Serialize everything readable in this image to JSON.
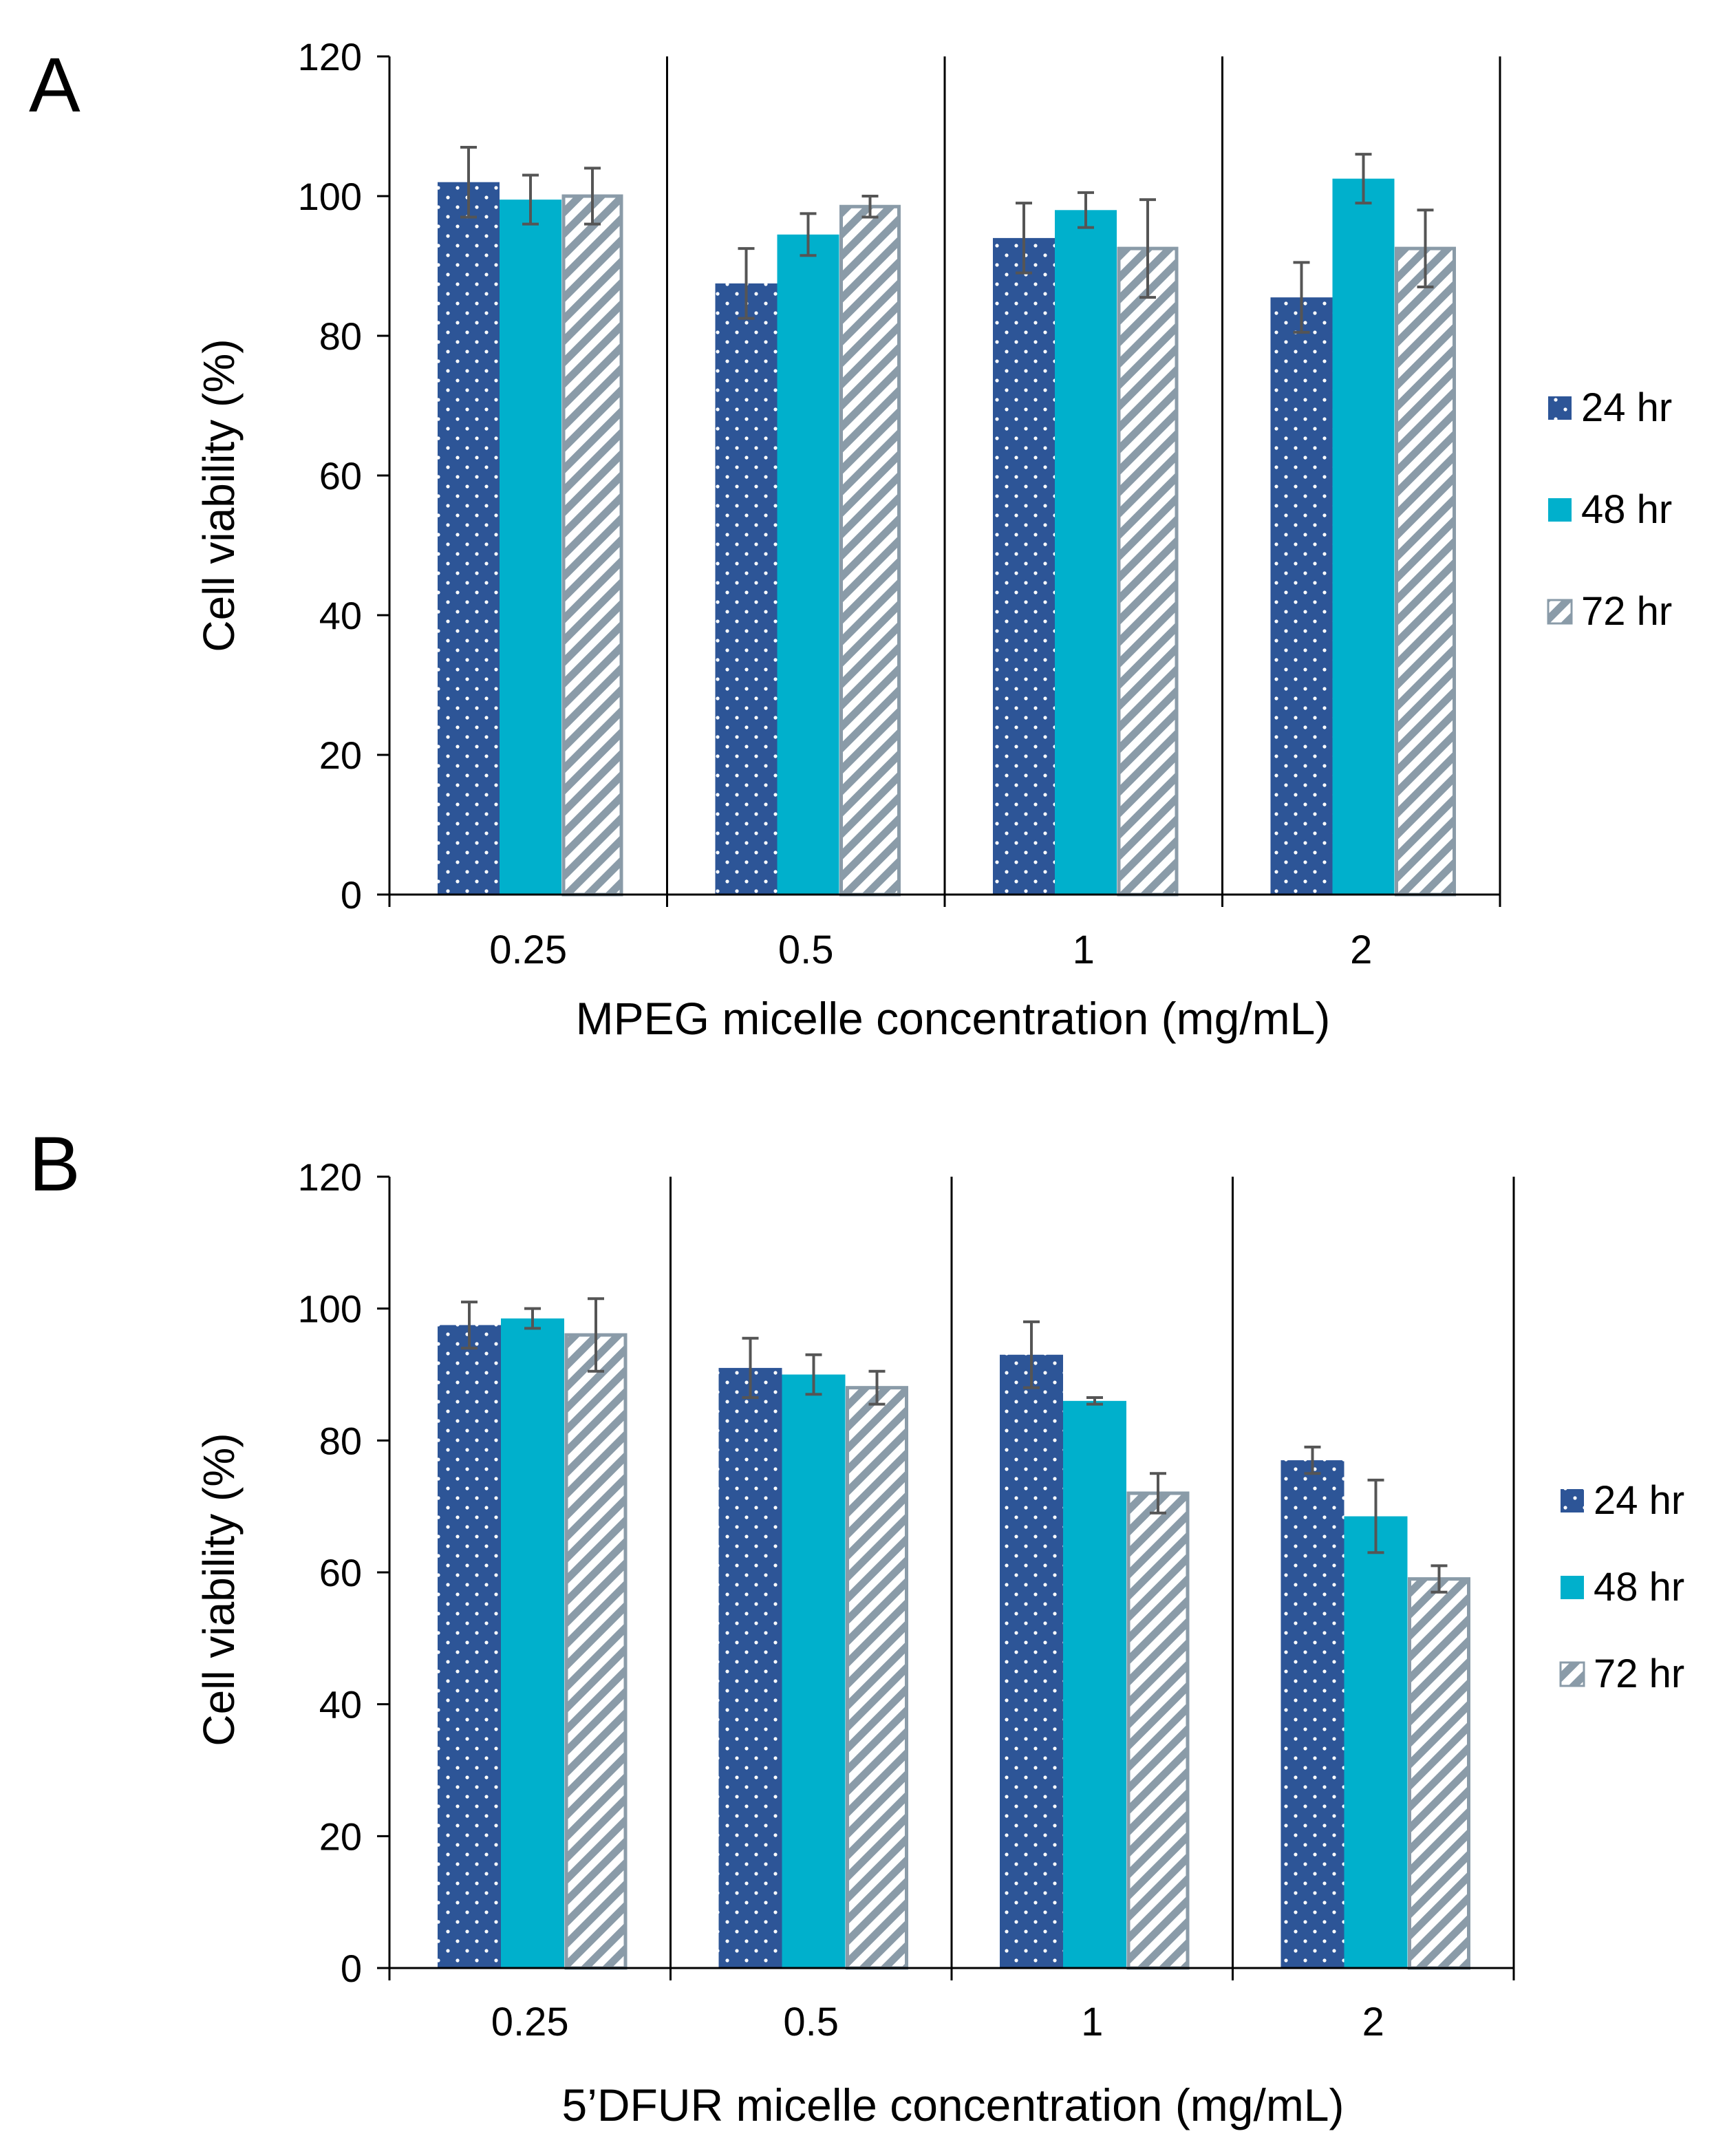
{
  "chart_data": [
    {
      "panel": "A",
      "type": "bar",
      "categories": [
        "0.25",
        "0.5",
        "1",
        "2"
      ],
      "xlabel": "MPEG micelle concentration (mg/mL)",
      "ylabel": "Cell viability (%)",
      "ylim": [
        0,
        120
      ],
      "yticks": [
        0,
        20,
        40,
        60,
        80,
        100,
        120
      ],
      "grid": false,
      "legend_position": "right",
      "series": [
        {
          "name": "24 hr",
          "color": "#2d5597",
          "pattern": "dots",
          "values": [
            102,
            87.5,
            94,
            85.5
          ],
          "errors": [
            5,
            5,
            5,
            5
          ]
        },
        {
          "name": "48 hr",
          "color": "#00b0cc",
          "pattern": "solid",
          "values": [
            99.5,
            94.5,
            98,
            102.5
          ],
          "errors": [
            3.5,
            3,
            2.5,
            3.5
          ]
        },
        {
          "name": "72 hr",
          "color": "#8a9ba8",
          "pattern": "diagonal-stripes",
          "values": [
            100,
            98.5,
            92.5,
            92.5
          ],
          "errors": [
            4,
            1.5,
            7,
            5.5
          ]
        }
      ]
    },
    {
      "panel": "B",
      "type": "bar",
      "categories": [
        "0.25",
        "0.5",
        "1",
        "2"
      ],
      "xlabel": "5’DFUR micelle concentration (mg/mL)",
      "ylabel": "Cell viability (%)",
      "ylim": [
        0,
        120
      ],
      "yticks": [
        0,
        20,
        40,
        60,
        80,
        100,
        120
      ],
      "grid": false,
      "legend_position": "right",
      "series": [
        {
          "name": "24 hr",
          "color": "#2d5597",
          "pattern": "dots",
          "values": [
            97.5,
            91,
            93,
            77
          ],
          "errors": [
            3.5,
            4.5,
            5,
            2
          ]
        },
        {
          "name": "48 hr",
          "color": "#00b0cc",
          "pattern": "solid",
          "values": [
            98.5,
            90,
            86,
            68.5
          ],
          "errors": [
            1.5,
            3,
            0.5,
            5.5
          ]
        },
        {
          "name": "72 hr",
          "color": "#8a9ba8",
          "pattern": "diagonal-stripes",
          "values": [
            96,
            88,
            72,
            59
          ],
          "errors": [
            5.5,
            2.5,
            3,
            2
          ]
        }
      ]
    }
  ]
}
